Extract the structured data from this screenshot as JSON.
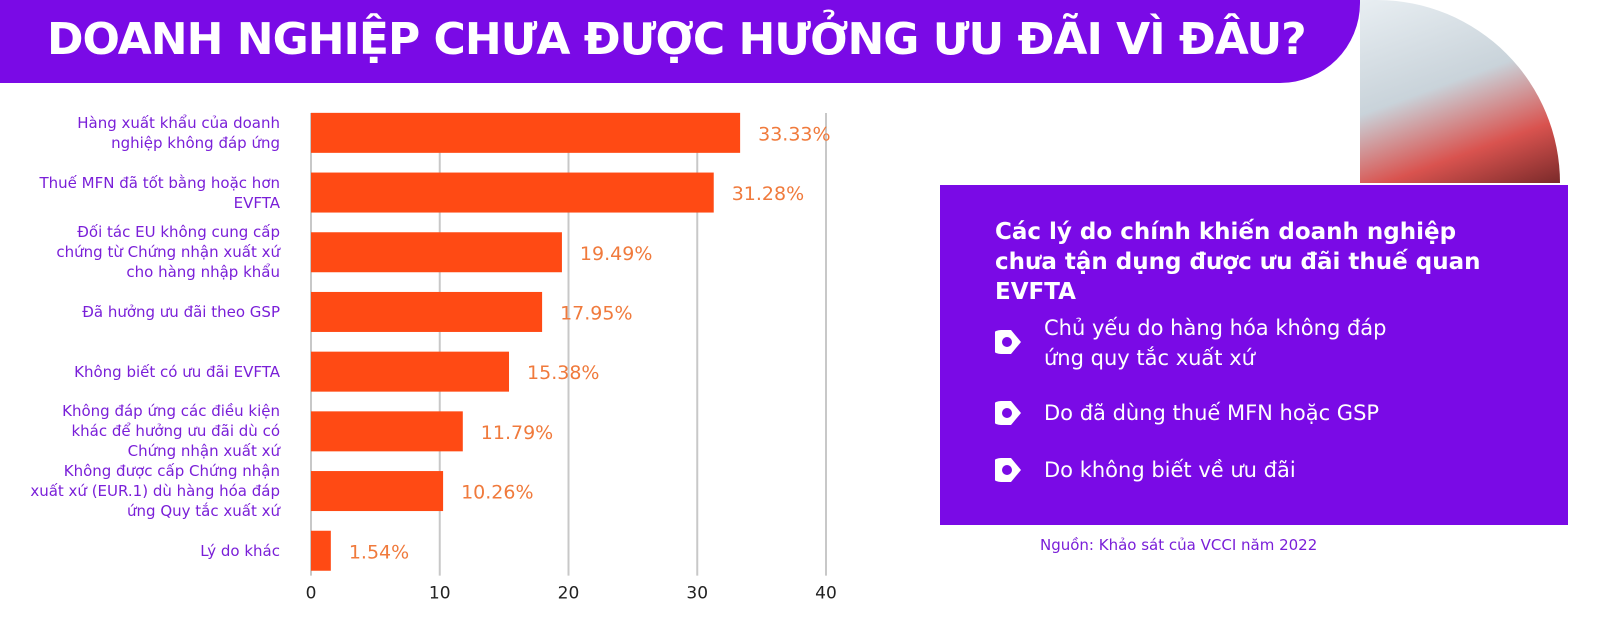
{
  "chart_data": {
    "type": "hbar",
    "title": "DOANH NGHIỆP CHƯA ĐƯỢC HƯỞNG ƯU ĐÃI VÌ ĐÂU?",
    "categories": [
      "Hàng xuất khẩu của doanh nghiệp không đáp ứng",
      "Thuế MFN đã tốt bằng hoặc hơn EVFTA",
      "Đối tác EU không cung cấp chứng từ Chứng nhận xuất xứ cho hàng nhập khẩu",
      "Đã hưởng ưu đãi theo GSP",
      "Không biết có ưu đãi EVFTA",
      "Không đáp ứng các điều kiện khác để hưởng ưu đãi dù có Chứng nhận xuất xứ",
      "Không được cấp Chứng nhận xuất xứ (EUR.1) dù hàng hóa đáp ứng Quy tắc xuất xứ",
      "Lý do khác"
    ],
    "values": [
      33.33,
      31.28,
      19.49,
      17.95,
      15.38,
      11.79,
      10.26,
      1.54
    ],
    "value_labels": [
      "33.33%",
      "31.28%",
      "19.49%",
      "17.95%",
      "15.38%",
      "11.79%",
      "10.26%",
      "1.54%"
    ],
    "color": "#ff4a14",
    "xlim": [
      0,
      40
    ],
    "xticks": [
      0,
      10,
      20,
      30,
      40
    ],
    "grid": true
  },
  "panel": {
    "heading": "Các lý do chính khiến doanh nghiệp chưa tận dụng được ưu đãi thuế quan EVFTA",
    "items": [
      "Chủ yếu do hàng hóa không đáp ứng quy tắc xuất xứ",
      "Do đã dùng thuế MFN hoặc GSP",
      "Do không biết về ưu đãi"
    ]
  },
  "source": "Nguồn: Khảo sát của VCCI năm 2022"
}
